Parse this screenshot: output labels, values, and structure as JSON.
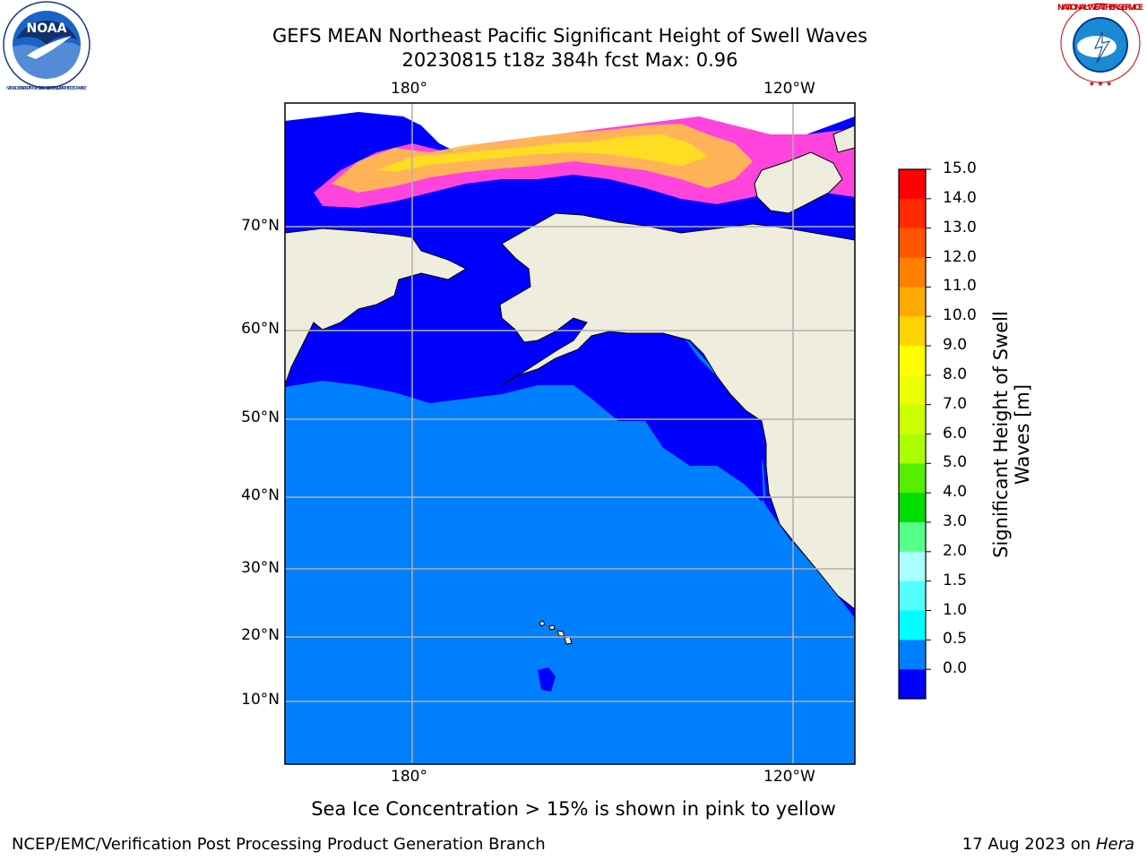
{
  "header": {
    "title": "GEFS MEAN Northeast Pacific Significant Height of Swell Waves",
    "subtitle": "20230815 t18z 384h fcst   Max: 0.96"
  },
  "logos": {
    "noaa": {
      "text": "NOAA",
      "ring_text": "NATIONAL OCEANIC AND ATMOSPHERIC ADMINISTRATION · U.S. DEPARTMENT OF COMMERCE"
    },
    "nws": {
      "ring_text": "NATIONAL WEATHER SERVICE"
    }
  },
  "map": {
    "region": "Northeast Pacific",
    "lon_labels_top": [
      "180°",
      "120°W"
    ],
    "lon_labels_bottom": [
      "180°",
      "120°W"
    ],
    "lat_labels": [
      "70°N",
      "60°N",
      "50°N",
      "40°N",
      "30°N",
      "20°N",
      "10°N"
    ],
    "colors": {
      "land": "#efedde",
      "ocean_0_0.5": "#0000ff",
      "ocean_0.5_1.0": "#0080ff",
      "ice_low": "#ff44dd",
      "ice_high": "#ffdd22"
    }
  },
  "colorbar": {
    "label": "Significant Height of Swell Waves [m]",
    "label_lines": [
      "Significant Height of Swell",
      "Waves [m]"
    ],
    "ticks": [
      "15.0",
      "14.0",
      "13.0",
      "12.0",
      "11.0",
      "10.0",
      "9.0",
      "8.0",
      "7.0",
      "6.0",
      "5.0",
      "4.0",
      "3.0",
      "2.0",
      "1.5",
      "1.0",
      "0.5",
      "0.0"
    ],
    "colors": [
      "#ff0000",
      "#ff2a00",
      "#ff5500",
      "#ff8000",
      "#ffaa00",
      "#ffd400",
      "#ffff00",
      "#eaff00",
      "#ccff00",
      "#aaff00",
      "#55ee00",
      "#00dd00",
      "#55ff88",
      "#aaffff",
      "#55ffff",
      "#00ffff",
      "#0080ff",
      "#0000ff"
    ]
  },
  "caption": "Sea Ice Concentration > 15% is shown in pink to yellow",
  "footer": {
    "left": "NCEP/EMC/Verification Post Processing Product Generation Branch",
    "date": "17 Aug 2023 on",
    "machine": "Hera"
  }
}
